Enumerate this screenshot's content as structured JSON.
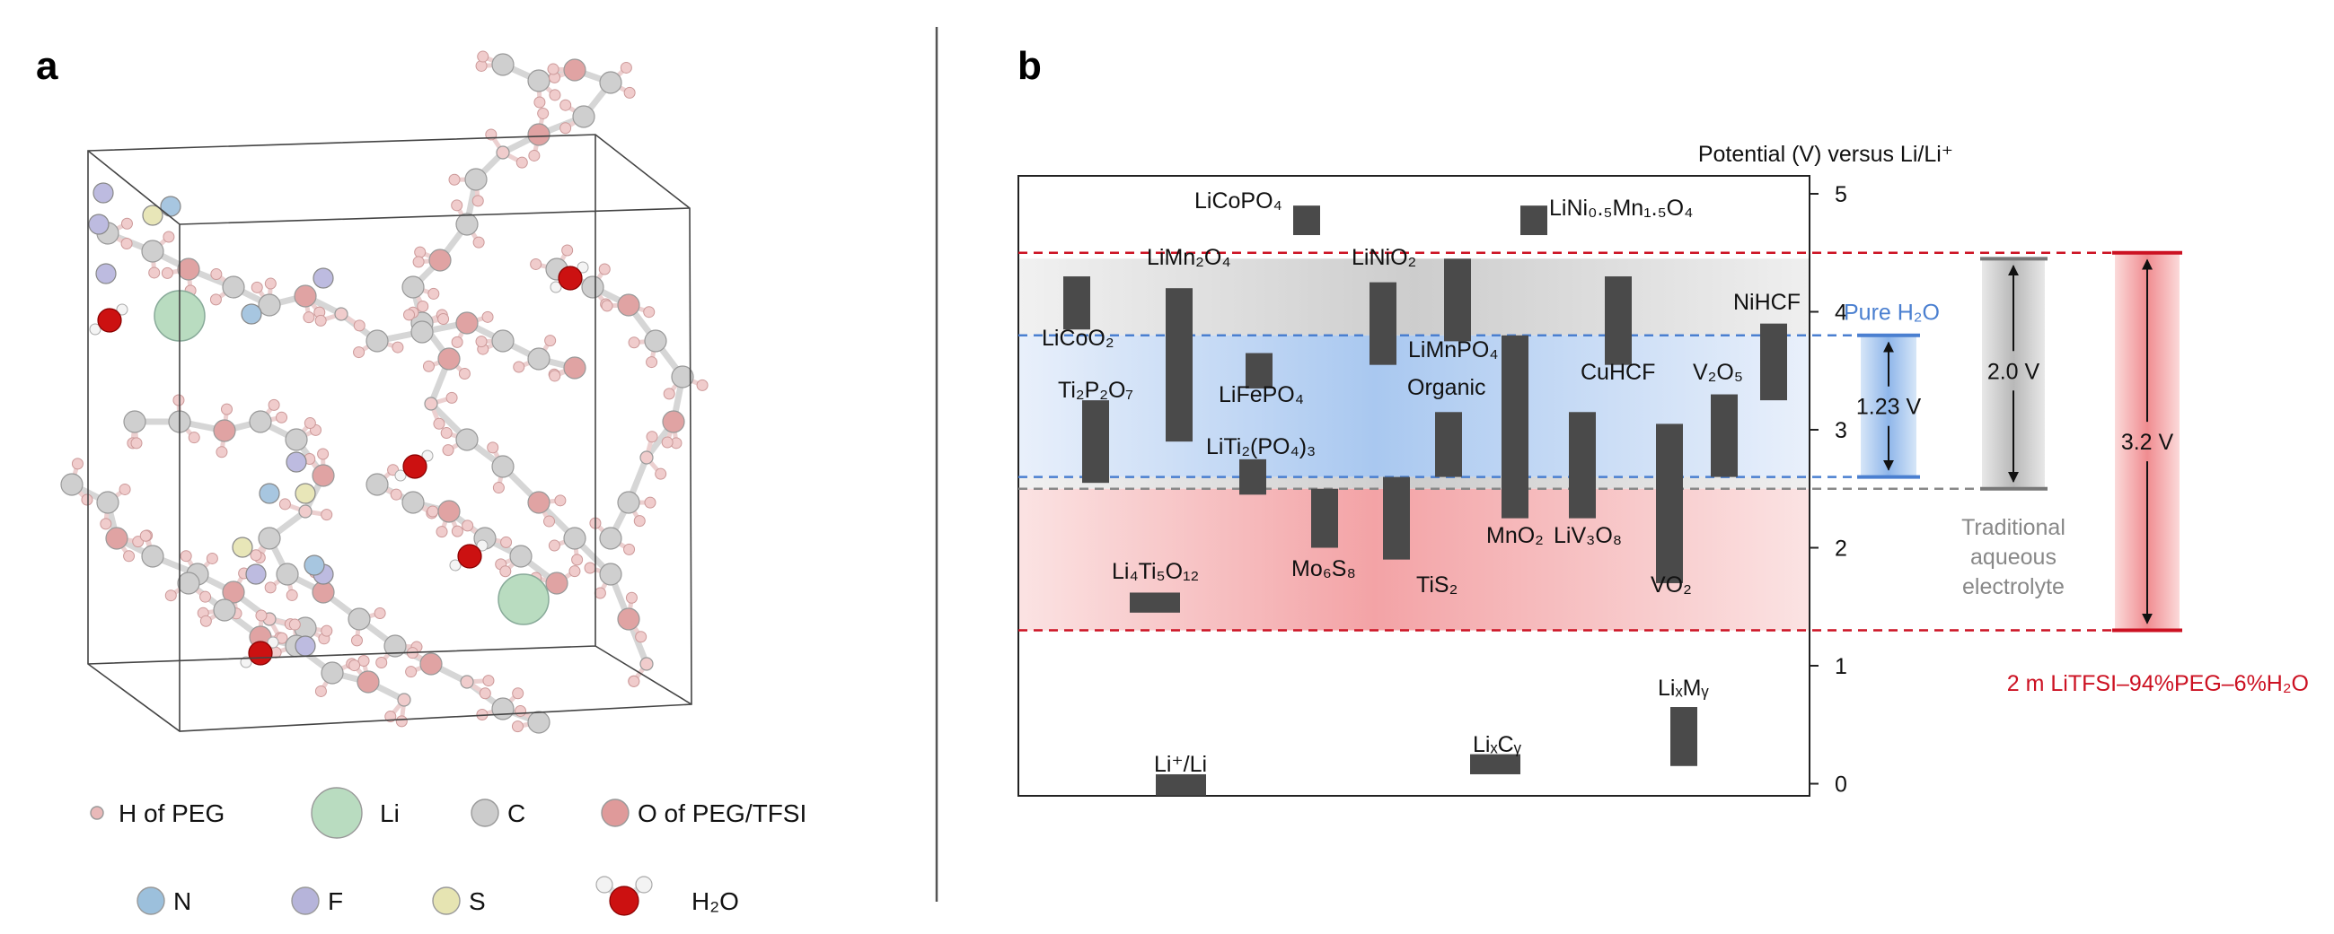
{
  "panel_a": {
    "label": "a",
    "legend": [
      {
        "name": "H of PEG",
        "color": "#e9b9b9",
        "glyph": "small-sphere"
      },
      {
        "name": "Li",
        "color": "#b9dcc0",
        "glyph": "large-sphere"
      },
      {
        "name": "C",
        "color": "#cccccc",
        "glyph": "sphere"
      },
      {
        "name": "O of PEG/TFSI",
        "color": "#df9a9a",
        "glyph": "sphere"
      },
      {
        "name": "N",
        "color": "#9cc0dc",
        "glyph": "sphere"
      },
      {
        "name": "F",
        "color": "#b6b4da",
        "glyph": "sphere"
      },
      {
        "name": "S",
        "color": "#e6e4b2",
        "glyph": "sphere"
      },
      {
        "name": "H₂O",
        "color": "#cc1111",
        "glyph": "water-molecule"
      }
    ]
  },
  "panel_b": {
    "label": "b",
    "axis_title": "Potential (V) versus Li/Li⁺",
    "ticks": [
      "5",
      "4",
      "3",
      "2",
      "1",
      "0"
    ],
    "windows": {
      "pure_water": {
        "label": "Pure H₂O",
        "span": "1.23 V",
        "color": "#4a7fd0"
      },
      "traditional": {
        "label_lines": [
          "Traditional",
          "aqueous",
          "electrolyte"
        ],
        "span": "2.0 V",
        "color": "#888888"
      },
      "peg": {
        "label": "2 m LiTFSI–94%PEG–6%H₂O",
        "span": "3.2 V",
        "color": "#cc1122"
      }
    },
    "materials": [
      {
        "id": "licopo4",
        "label": "LiCoPO₄",
        "low": 4.65,
        "high": 4.9
      },
      {
        "id": "lini-mn",
        "label": "LiNi₀.₅Mn₁.₅O₄",
        "low": 4.65,
        "high": 4.9
      },
      {
        "id": "licoo2",
        "label": "LiCoO₂",
        "low": 3.85,
        "high": 4.3
      },
      {
        "id": "limn2o4",
        "label": "LiMn₂O₄",
        "low": 2.9,
        "high": 4.2
      },
      {
        "id": "linio2",
        "label": "LiNiO₂",
        "low": 3.55,
        "high": 4.25
      },
      {
        "id": "limnpo4",
        "label": "LiMnPO₄",
        "low": 3.75,
        "high": 4.45
      },
      {
        "id": "cuhcf",
        "label": "CuHCF",
        "low": 3.55,
        "high": 4.3
      },
      {
        "id": "nihcf",
        "label": "NiHCF",
        "low": 3.25,
        "high": 3.9
      },
      {
        "id": "ti2p2o7",
        "label": "Ti₂P₂O₇",
        "low": 2.55,
        "high": 3.25
      },
      {
        "id": "lifepo4",
        "label": "LiFePO₄",
        "low": 3.35,
        "high": 3.65
      },
      {
        "id": "organic",
        "label": "Organic",
        "low": 2.6,
        "high": 3.15
      },
      {
        "id": "v2o5",
        "label": "V₂O₅",
        "low": 2.6,
        "high": 3.3
      },
      {
        "id": "liti2po43",
        "label": "LiTi₂(PO₄)₃",
        "low": 2.45,
        "high": 2.75
      },
      {
        "id": "mno2",
        "label": "MnO₂",
        "low": 2.25,
        "high": 3.8
      },
      {
        "id": "liv3o8",
        "label": "LiV₃O₈",
        "low": 2.25,
        "high": 3.15
      },
      {
        "id": "vo2",
        "label": "VO₂",
        "low": 1.7,
        "high": 3.05
      },
      {
        "id": "mo6s8",
        "label": "Mo₆S₈",
        "low": 2.0,
        "high": 2.5
      },
      {
        "id": "tis2",
        "label": "TiS₂",
        "low": 1.9,
        "high": 2.6
      },
      {
        "id": "li4ti5o12",
        "label": "Li₄Ti₅O₁₂",
        "low": 1.45,
        "high": 1.62
      },
      {
        "id": "lixmy",
        "label": "LiₓMᵧ",
        "low": 0.15,
        "high": 0.65
      },
      {
        "id": "lixcy",
        "label": "LiₓCᵧ",
        "low": 0.08,
        "high": 0.25
      },
      {
        "id": "li-li",
        "label": "Li⁺/Li",
        "low": -0.1,
        "high": 0.08
      }
    ]
  }
}
